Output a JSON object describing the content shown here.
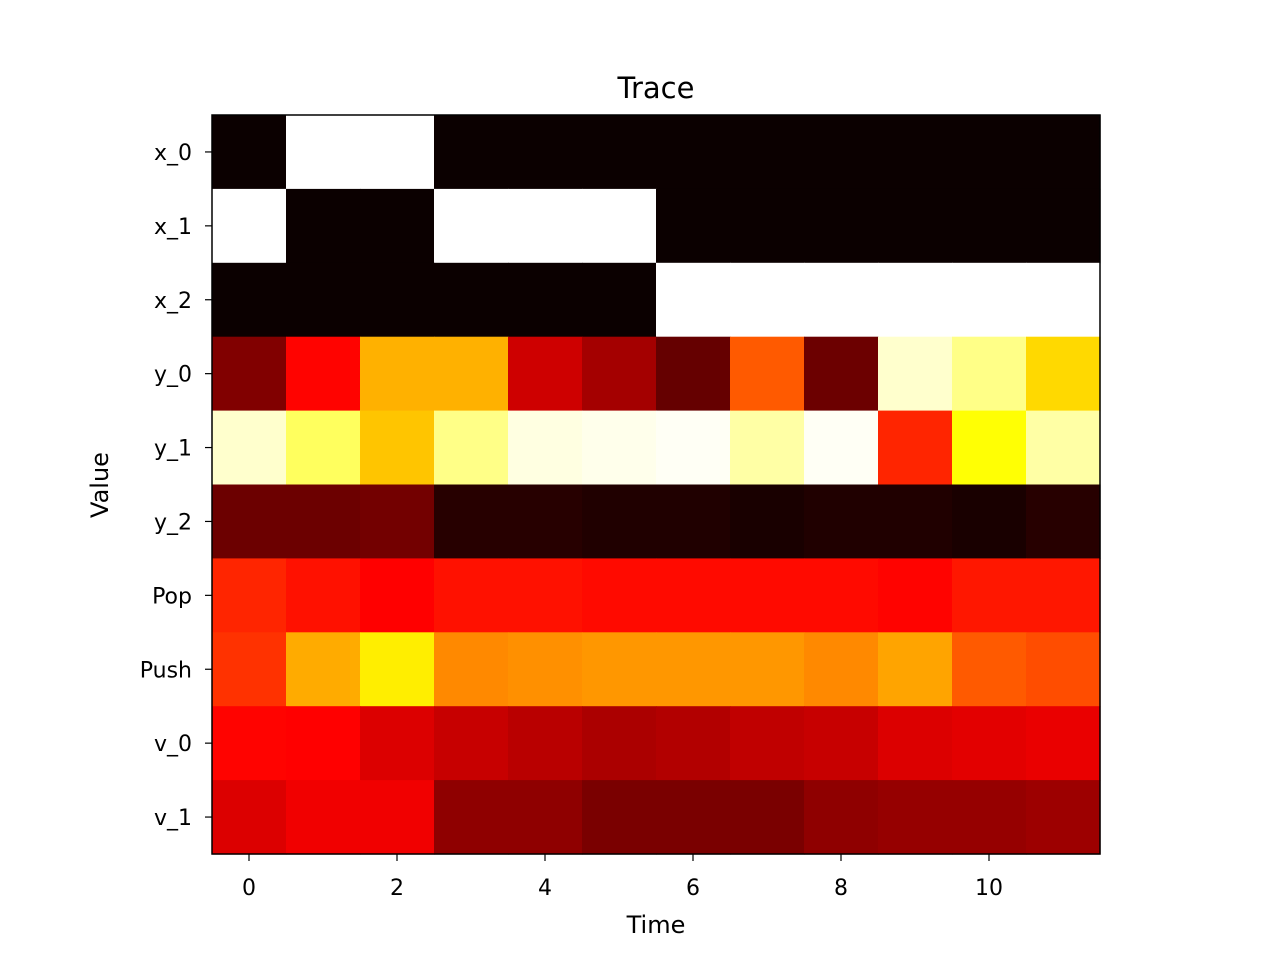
{
  "chart_data": {
    "type": "heatmap",
    "title": "Trace",
    "xlabel": "Time",
    "ylabel": "Value",
    "colormap": "hot",
    "value_range": [
      0,
      1
    ],
    "x_columns": [
      0,
      1,
      2,
      3,
      4,
      5,
      6,
      7,
      8,
      9,
      10,
      11
    ],
    "x_ticks": [
      0,
      2,
      4,
      6,
      8,
      10
    ],
    "xlim": [
      -0.5,
      11.5
    ],
    "rows": [
      "x_0",
      "x_1",
      "x_2",
      "y_0",
      "y_1",
      "y_2",
      "Pop",
      "Push",
      "v_0",
      "v_1"
    ],
    "values": [
      [
        0.0,
        1.0,
        1.0,
        0.0,
        0.0,
        0.0,
        0.0,
        0.0,
        0.0,
        0.0,
        0.0,
        0.0
      ],
      [
        1.0,
        0.0,
        0.0,
        1.0,
        1.0,
        1.0,
        0.0,
        0.0,
        0.0,
        0.0,
        0.0,
        0.0
      ],
      [
        0.0,
        0.0,
        0.0,
        0.0,
        0.0,
        0.0,
        1.0,
        1.0,
        1.0,
        1.0,
        1.0,
        1.0
      ],
      [
        0.17,
        0.37,
        0.63,
        0.63,
        0.28,
        0.22,
        0.13,
        0.5,
        0.14,
        0.95,
        0.88,
        0.69
      ],
      [
        0.95,
        0.84,
        0.66,
        0.88,
        0.97,
        0.98,
        0.99,
        0.91,
        0.99,
        0.42,
        0.75,
        0.91
      ],
      [
        0.14,
        0.14,
        0.15,
        0.04,
        0.04,
        0.03,
        0.03,
        0.02,
        0.03,
        0.03,
        0.02,
        0.04
      ],
      [
        0.42,
        0.39,
        0.36,
        0.39,
        0.39,
        0.38,
        0.38,
        0.38,
        0.38,
        0.37,
        0.4,
        0.4
      ],
      [
        0.44,
        0.62,
        0.72,
        0.57,
        0.58,
        0.59,
        0.59,
        0.59,
        0.57,
        0.61,
        0.5,
        0.48
      ],
      [
        0.37,
        0.35,
        0.3,
        0.27,
        0.25,
        0.23,
        0.24,
        0.26,
        0.27,
        0.3,
        0.31,
        0.32
      ],
      [
        0.3,
        0.33,
        0.33,
        0.19,
        0.19,
        0.16,
        0.16,
        0.16,
        0.19,
        0.2,
        0.2,
        0.21
      ]
    ]
  }
}
